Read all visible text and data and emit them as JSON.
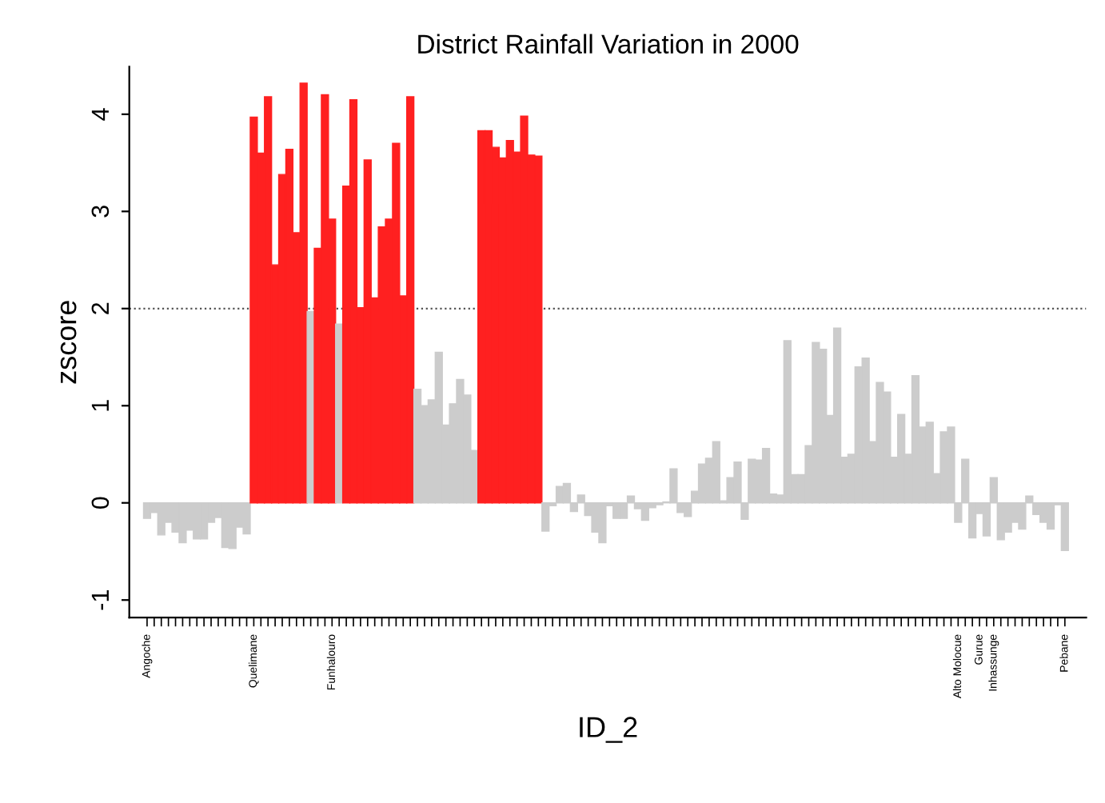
{
  "chart_data": {
    "type": "bar",
    "title": "District Rainfall Variation in 2000",
    "xlabel": "ID_2",
    "ylabel": "zscore",
    "categories": [
      "Angoche",
      null,
      null,
      null,
      null,
      null,
      null,
      null,
      null,
      null,
      null,
      null,
      null,
      null,
      null,
      "Quelimane",
      null,
      null,
      null,
      null,
      null,
      null,
      null,
      null,
      null,
      null,
      "Funhalouro",
      null,
      null,
      null,
      null,
      null,
      null,
      null,
      null,
      null,
      null,
      null,
      null,
      null,
      null,
      null,
      null,
      null,
      null,
      null,
      null,
      null,
      null,
      null,
      null,
      null,
      null,
      null,
      null,
      null,
      null,
      null,
      null,
      null,
      null,
      null,
      null,
      null,
      null,
      null,
      null,
      null,
      null,
      null,
      null,
      null,
      null,
      null,
      null,
      null,
      null,
      null,
      null,
      null,
      null,
      null,
      null,
      null,
      null,
      null,
      null,
      null,
      null,
      null,
      null,
      null,
      null,
      null,
      null,
      null,
      null,
      null,
      null,
      null,
      null,
      null,
      null,
      null,
      null,
      null,
      null,
      null,
      null,
      null,
      null,
      null,
      null,
      null,
      "Alto Molocue",
      null,
      null,
      "Gurue",
      null,
      "Inhassunge",
      null,
      null,
      null,
      null,
      null,
      null,
      null,
      null,
      null,
      "Pebane"
    ],
    "values": [
      -0.16,
      -0.1,
      -0.33,
      -0.2,
      -0.3,
      -0.41,
      -0.28,
      -0.37,
      -0.37,
      -0.2,
      -0.15,
      -0.46,
      -0.47,
      -0.25,
      -0.32,
      3.97,
      3.6,
      4.18,
      2.45,
      3.38,
      3.64,
      2.78,
      4.32,
      1.97,
      2.62,
      4.2,
      2.92,
      1.84,
      3.26,
      4.15,
      2.01,
      3.53,
      2.11,
      2.84,
      2.92,
      3.7,
      2.13,
      4.18,
      1.17,
      1.0,
      1.06,
      1.55,
      0.8,
      1.02,
      1.27,
      1.11,
      0.54,
      3.83,
      3.83,
      3.66,
      3.55,
      3.73,
      3.61,
      3.98,
      3.58,
      3.57,
      -0.29,
      -0.03,
      0.17,
      0.2,
      -0.09,
      0.08,
      -0.13,
      -0.3,
      -0.41,
      -0.03,
      -0.16,
      -0.16,
      0.07,
      -0.06,
      -0.18,
      -0.05,
      -0.02,
      0.01,
      0.35,
      -0.1,
      -0.14,
      0.12,
      0.4,
      0.46,
      0.63,
      0.02,
      0.26,
      0.42,
      -0.17,
      0.45,
      0.44,
      0.56,
      0.09,
      0.08,
      1.67,
      0.29,
      0.29,
      0.59,
      1.65,
      1.58,
      0.9,
      1.8,
      0.47,
      0.5,
      1.4,
      1.49,
      0.63,
      1.24,
      1.14,
      0.47,
      0.91,
      0.5,
      1.31,
      0.78,
      0.83,
      0.3,
      0.73,
      0.78,
      -0.2,
      0.45,
      -0.36,
      -0.11,
      -0.34,
      0.26,
      -0.38,
      -0.3,
      -0.2,
      -0.27,
      0.07,
      -0.12,
      -0.2,
      -0.27,
      -0.02,
      -0.49
    ],
    "colors": [
      "#cccccc",
      "#cccccc",
      "#cccccc",
      "#cccccc",
      "#cccccc",
      "#cccccc",
      "#cccccc",
      "#cccccc",
      "#cccccc",
      "#cccccc",
      "#cccccc",
      "#cccccc",
      "#cccccc",
      "#cccccc",
      "#cccccc",
      "#ff2020",
      "#ff2020",
      "#ff2020",
      "#ff2020",
      "#ff2020",
      "#ff2020",
      "#ff2020",
      "#ff2020",
      "#cccccc",
      "#ff2020",
      "#ff2020",
      "#ff2020",
      "#cccccc",
      "#ff2020",
      "#ff2020",
      "#ff2020",
      "#ff2020",
      "#ff2020",
      "#ff2020",
      "#ff2020",
      "#ff2020",
      "#ff2020",
      "#ff2020",
      "#cccccc",
      "#cccccc",
      "#cccccc",
      "#cccccc",
      "#cccccc",
      "#cccccc",
      "#cccccc",
      "#cccccc",
      "#cccccc",
      "#ff2020",
      "#ff2020",
      "#ff2020",
      "#ff2020",
      "#ff2020",
      "#ff2020",
      "#ff2020",
      "#ff2020",
      "#ff2020",
      "#cccccc",
      "#cccccc",
      "#cccccc",
      "#cccccc",
      "#cccccc",
      "#cccccc",
      "#cccccc",
      "#cccccc",
      "#cccccc",
      "#cccccc",
      "#cccccc",
      "#cccccc",
      "#cccccc",
      "#cccccc",
      "#cccccc",
      "#cccccc",
      "#cccccc",
      "#cccccc",
      "#cccccc",
      "#cccccc",
      "#cccccc",
      "#cccccc",
      "#cccccc",
      "#cccccc",
      "#cccccc",
      "#cccccc",
      "#cccccc",
      "#cccccc",
      "#cccccc",
      "#cccccc",
      "#cccccc",
      "#cccccc",
      "#cccccc",
      "#cccccc",
      "#cccccc",
      "#cccccc",
      "#cccccc",
      "#cccccc",
      "#cccccc",
      "#cccccc",
      "#cccccc",
      "#cccccc",
      "#cccccc",
      "#cccccc",
      "#cccccc",
      "#cccccc",
      "#cccccc",
      "#cccccc",
      "#cccccc",
      "#cccccc",
      "#cccccc",
      "#cccccc",
      "#cccccc",
      "#cccccc",
      "#cccccc",
      "#cccccc",
      "#cccccc",
      "#cccccc",
      "#cccccc",
      "#cccccc",
      "#cccccc",
      "#cccccc",
      "#cccccc",
      "#cccccc",
      "#cccccc",
      "#cccccc",
      "#cccccc",
      "#cccccc",
      "#cccccc",
      "#cccccc",
      "#cccccc",
      "#cccccc",
      "#cccccc",
      "#cccccc"
    ],
    "ylim": [
      -1.18,
      4.49
    ],
    "yticks": [
      -1,
      0,
      1,
      2,
      3,
      4
    ],
    "ref_lines": [
      {
        "axis": "y",
        "value": 2,
        "color": "#555555",
        "line_style": "dotted"
      }
    ],
    "grid": false,
    "legend": false
  }
}
